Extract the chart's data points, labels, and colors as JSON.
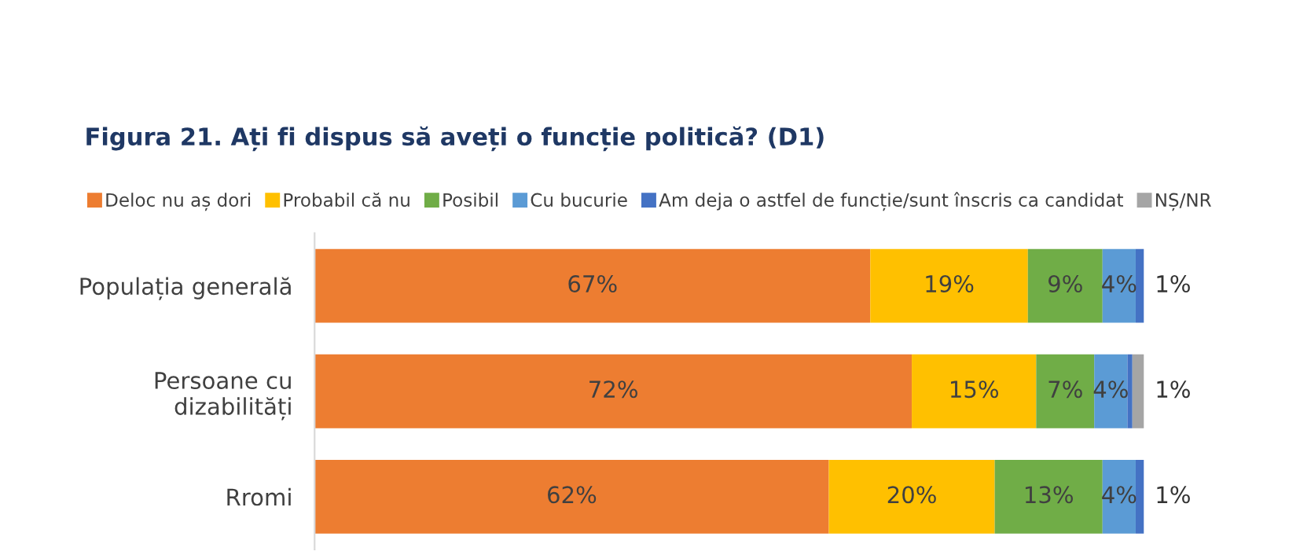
{
  "chart_data": {
    "type": "bar",
    "orientation": "horizontal",
    "stacked": true,
    "title": "Figura 21. Ați fi dispus să aveți o funcție politică? (D1)",
    "categories": [
      "Populația generală",
      "Persoane cu\ndizabilități",
      "Rromi"
    ],
    "xlim": [
      0,
      100
    ],
    "grid": false,
    "legend": "top",
    "series": [
      {
        "name": "Deloc nu aș dori",
        "color": "#ed7d31",
        "values": [
          67,
          72,
          62
        ],
        "value_labels": [
          "67%",
          "72%",
          "62%"
        ]
      },
      {
        "name": "Probabil că nu",
        "color": "#ffc000",
        "values": [
          19,
          15,
          20
        ],
        "value_labels": [
          "19%",
          "15%",
          "20%"
        ]
      },
      {
        "name": "Posibil",
        "color": "#70ad47",
        "values": [
          9,
          7,
          13
        ],
        "value_labels": [
          "9%",
          "7%",
          "13%"
        ]
      },
      {
        "name": "Cu bucurie",
        "color": "#5b9bd5",
        "values": [
          4,
          4,
          4
        ],
        "value_labels": [
          "4%",
          "4%",
          "4%"
        ]
      },
      {
        "name": "Am deja o astfel de funcție/sunt înscris ca candidat",
        "color": "#4472c4",
        "values": [
          1,
          0.6,
          1
        ],
        "value_labels": [
          "1%",
          null,
          "1%"
        ]
      },
      {
        "name": "NȘ/NR",
        "color": "#a5a5a5",
        "values": [
          0,
          1.4,
          0
        ],
        "value_labels": [
          null,
          "1%",
          null
        ]
      }
    ]
  }
}
